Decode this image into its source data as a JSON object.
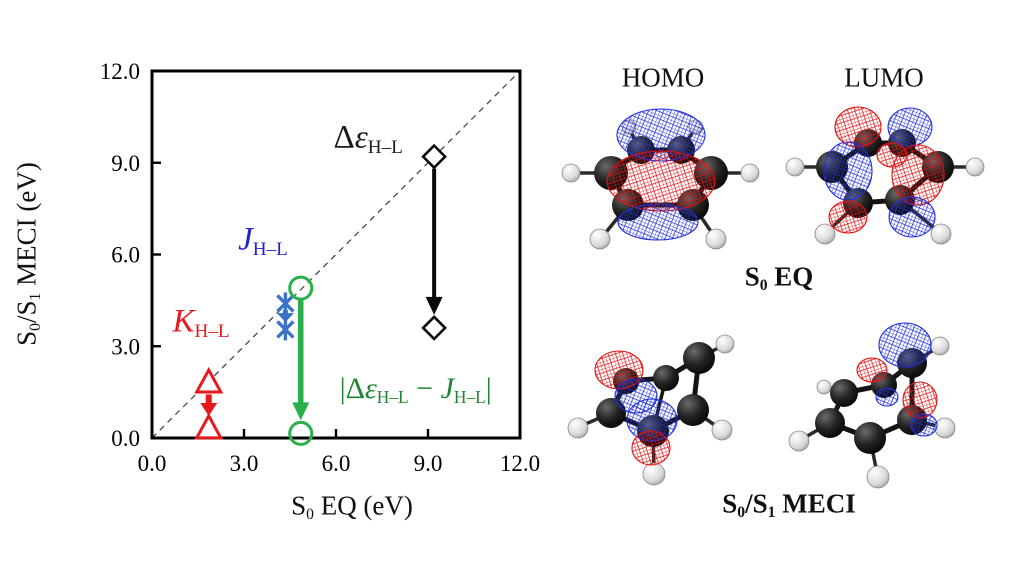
{
  "figure": {
    "background": "#ffffff"
  },
  "chart_data": {
    "type": "scatter",
    "title": "",
    "xlabel_segments": [
      {
        "t": "S"
      },
      {
        "t": "0",
        "sub": true
      },
      {
        "t": " EQ (eV)"
      }
    ],
    "ylabel_segments": [
      {
        "t": "S"
      },
      {
        "t": "0",
        "sub": true
      },
      {
        "t": "/S"
      },
      {
        "t": "1",
        "sub": true
      },
      {
        "t": " MECI (eV)"
      }
    ],
    "xlim": [
      0,
      12
    ],
    "ylim": [
      0,
      12
    ],
    "xticks": [
      0,
      3,
      6,
      9,
      12
    ],
    "xtick_labels": [
      "0.0",
      "3.0",
      "6.0",
      "9.0",
      "12.0"
    ],
    "yticks": [
      0,
      3,
      6,
      9,
      12
    ],
    "ytick_labels": [
      "0.0",
      "3.0",
      "6.0",
      "9.0",
      "12.0"
    ],
    "grid": false,
    "diagonal": {
      "style": "dashed",
      "from": [
        0,
        0
      ],
      "to": [
        12,
        12
      ],
      "color": "#4a4a4a"
    },
    "series": [
      {
        "name": "delta-epsilon-HL",
        "marker": "diamond",
        "color": "#0a0a0a",
        "points": [
          [
            9.2,
            9.2
          ],
          [
            9.2,
            3.6
          ]
        ],
        "arrow": "down",
        "label_segments": [
          {
            "t": "Δ"
          },
          {
            "t": "ε",
            "italic": true
          },
          {
            "t": "H–L",
            "sub": true
          }
        ],
        "label_color": "#1a1a1a",
        "label_pos": [
          7.05,
          9.8
        ]
      },
      {
        "name": "J-HL",
        "marker": "xcross",
        "color": "#3a72c8",
        "points": [
          [
            4.35,
            4.4
          ],
          [
            4.35,
            3.55
          ]
        ],
        "arrow": "down",
        "label_segments": [
          {
            "t": "J",
            "italic": true
          },
          {
            "t": "H–L",
            "sub": true
          }
        ],
        "label_color": "#2323cd",
        "label_pos": [
          3.62,
          6.47
        ]
      },
      {
        "name": "K-HL",
        "marker": "triangle",
        "color": "#e8191c",
        "points": [
          [
            1.85,
            1.8
          ],
          [
            1.85,
            0.3
          ]
        ],
        "arrow": "down",
        "label_segments": [
          {
            "t": "K",
            "italic": true
          },
          {
            "t": "H–L",
            "sub": true
          }
        ],
        "label_color": "#e8191c",
        "label_pos": [
          1.6,
          3.8
        ]
      },
      {
        "name": "abs-diff",
        "marker": "circle",
        "color": "#29b04a",
        "points": [
          [
            4.85,
            4.9
          ],
          [
            4.85,
            0.15
          ]
        ],
        "arrow": "down",
        "label_segments": [
          {
            "t": "|Δ"
          },
          {
            "t": "ε",
            "italic": true
          },
          {
            "t": "H–L",
            "sub": true
          },
          {
            "t": " − "
          },
          {
            "t": "J",
            "italic": true
          },
          {
            "t": "H–L",
            "sub": true
          },
          {
            "t": "|"
          }
        ],
        "label_color": "#1e8533",
        "label_pos": [
          8.6,
          1.6
        ]
      }
    ]
  },
  "right_panel": {
    "homo_label": "HOMO",
    "lumo_label": "LUMO",
    "s0_eq_caption_segments": [
      {
        "t": "S"
      },
      {
        "t": "0",
        "sub": true
      },
      {
        "t": " EQ"
      }
    ],
    "meci_caption_segments": [
      {
        "t": "S"
      },
      {
        "t": "0",
        "sub": true
      },
      {
        "t": "/S"
      },
      {
        "t": "1",
        "sub": true
      },
      {
        "t": " MECI"
      }
    ],
    "orbital_positive_color": "#e01212",
    "orbital_negative_color": "#2030d8",
    "carbon_color": "#1b1b1b",
    "hydrogen_color": "#e8e8e8"
  }
}
